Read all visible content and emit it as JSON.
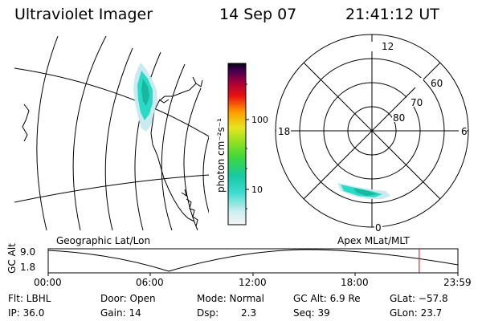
{
  "header": {
    "title": "Ultraviolet Imager",
    "date": "14 Sep 07",
    "time": "21:41:12 UT"
  },
  "geo_panel": {
    "label": "Geographic Lat/Lon"
  },
  "colorbar": {
    "unit_label": "photon cm⁻²s⁻¹",
    "tick_100": "100",
    "tick_10": "10"
  },
  "polar_plot": {
    "label": "Apex MLat/MLT",
    "mlt_12": "12",
    "mlt_18": "18",
    "mlt_6": "6",
    "mlt_0": "0",
    "lat_60": "60",
    "lat_70": "70",
    "lat_80": "80"
  },
  "altitude_strip": {
    "axis_label": "GC Alt",
    "max": "9.0",
    "min": "1.8",
    "ticks": [
      "00:00",
      "06:00",
      "12:00",
      "18:00",
      "23:59"
    ],
    "current_time_fraction": 0.9056
  },
  "info": {
    "filter": "Flt: LBHL",
    "door": "Door: Open",
    "mode": "Mode: Normal",
    "gc_alt": "GC Alt: 6.9 Re",
    "glat": "GLat: −57.8",
    "ip": "IP: 36.0",
    "gain": "Gain: 14",
    "dsp_label": "Dsp:",
    "dsp_value": "2.3",
    "seq": "Seq: 39",
    "glon": "GLon:  23.7"
  },
  "colors": {
    "marker": "#e00000",
    "aurora_low": "#2ad9c6",
    "aurora_mid": "#18b89f"
  }
}
